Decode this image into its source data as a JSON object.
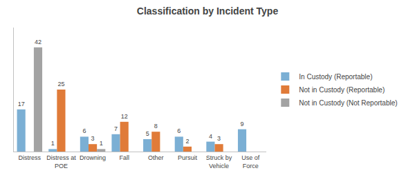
{
  "chart_data": {
    "type": "bar",
    "title": "Classification by Incident Type",
    "categories": [
      "Distress",
      "Distress at\nPOE",
      "Drowning",
      "Fall",
      "Other",
      "Pursuit",
      "Struck by\nVehicle",
      "Use of\nForce"
    ],
    "series": [
      {
        "name": "In Custody (Reportable)",
        "color": "#7bafd4",
        "values": [
          17,
          1,
          6,
          7,
          5,
          6,
          4,
          9
        ],
        "value_labels": [
          "17",
          "1",
          "6",
          "7",
          "5",
          "6",
          "4",
          "9"
        ]
      },
      {
        "name": "Not in Custody (Reportable)",
        "color": "#e07b39",
        "values": [
          0,
          25,
          3,
          12,
          8,
          2,
          3,
          0
        ],
        "value_labels": [
          null,
          "25",
          "3",
          "12",
          "8",
          "2",
          "3",
          null
        ]
      },
      {
        "name": "Not in Custody (Not Reportable)",
        "color": "#a3a3a3",
        "values": [
          42,
          0,
          1,
          0,
          0,
          0,
          0,
          0
        ],
        "value_labels": [
          "42",
          null,
          "1",
          null,
          null,
          null,
          null,
          null
        ]
      }
    ],
    "ylim": [
      0,
      50
    ],
    "grid": false,
    "legend": "right",
    "data_labels": true,
    "tick_labels": "x"
  }
}
